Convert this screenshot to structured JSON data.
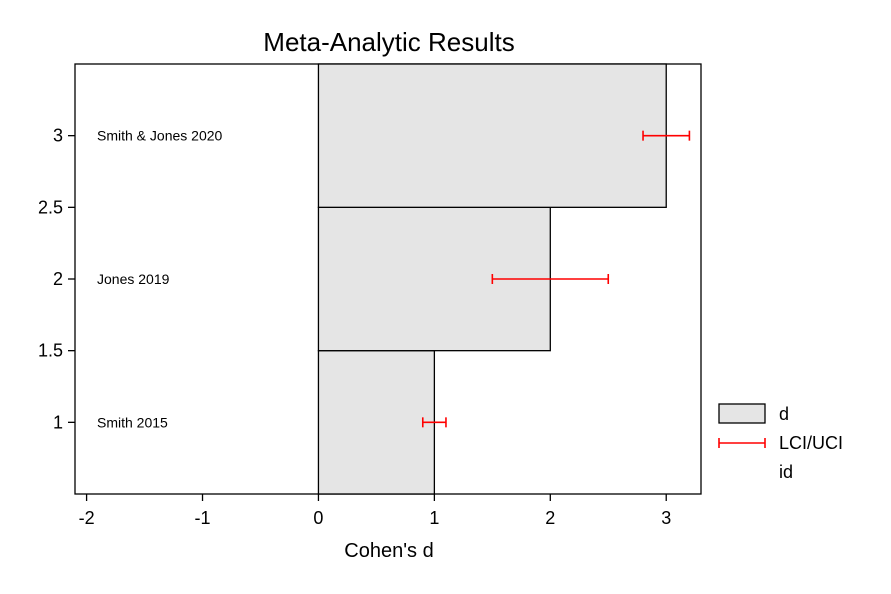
{
  "chart_data": {
    "type": "bar",
    "orientation": "horizontal",
    "title": "Meta-Analytic Results",
    "xlabel": "Cohen's d",
    "ylabel": "",
    "xlim": [
      -2.1,
      3.3
    ],
    "ylim": [
      0.5,
      3.5
    ],
    "xticks": [
      "-2",
      "-1",
      "0",
      "1",
      "2",
      "3"
    ],
    "yticks": [
      "1",
      "1.5",
      "2",
      "2.5",
      "3"
    ],
    "bar_color": "#e5e5e5",
    "error_color": "#ff0000",
    "grid": false,
    "legend_position": "right",
    "legend": [
      {
        "label": "d",
        "kind": "bar"
      },
      {
        "label": "LCI/UCI",
        "kind": "errorbar"
      },
      {
        "label": "id",
        "kind": "text"
      }
    ],
    "studies": [
      {
        "id": "Smith 2015",
        "y": 1,
        "d": 1,
        "lci": 0.9,
        "uci": 1.1
      },
      {
        "id": "Jones 2019",
        "y": 2,
        "d": 2,
        "lci": 1.5,
        "uci": 2.5
      },
      {
        "id": "Smith & Jones 2020",
        "y": 3,
        "d": 3,
        "lci": 2.8,
        "uci": 3.2
      }
    ]
  }
}
